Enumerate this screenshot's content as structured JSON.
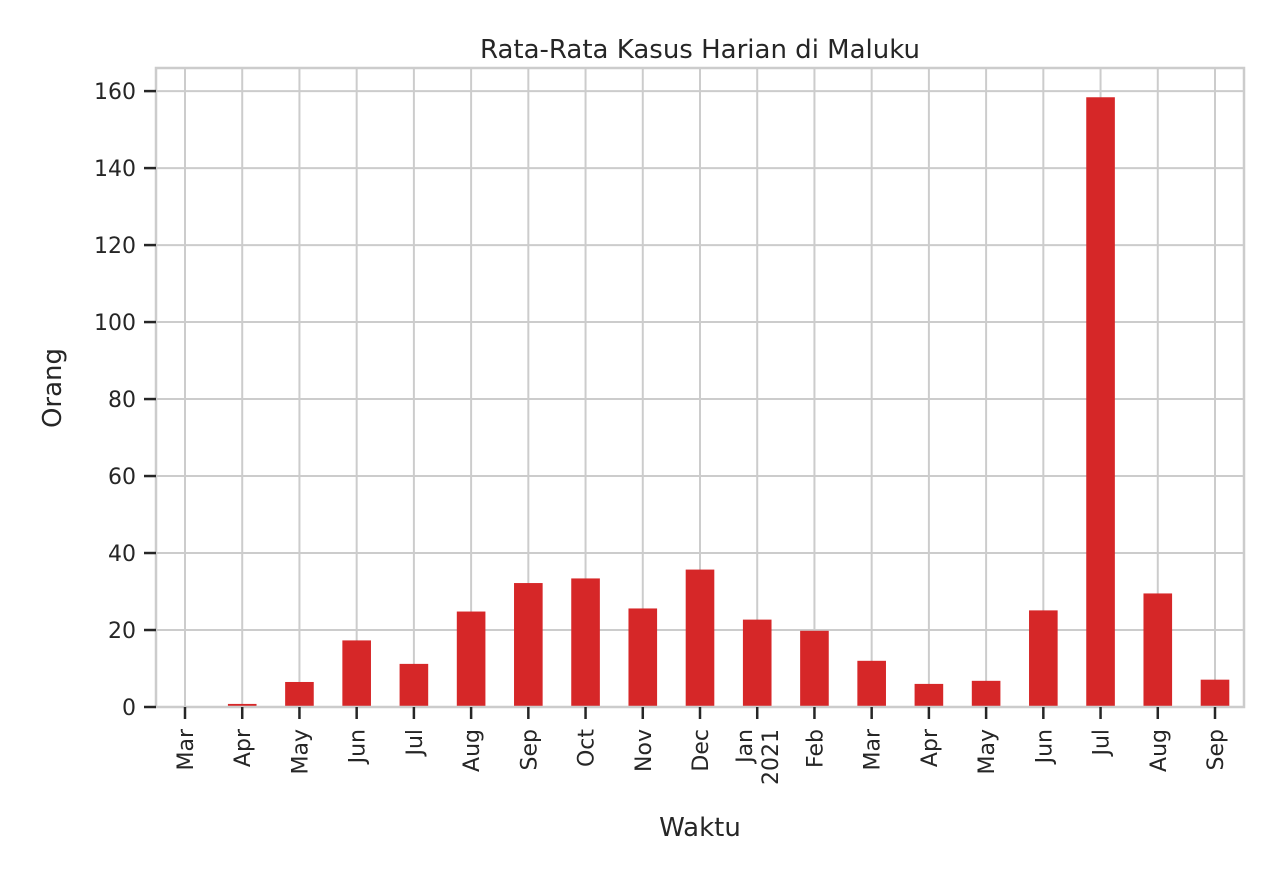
{
  "chart_data": {
    "type": "bar",
    "title": "Rata-Rata Kasus Harian di Maluku",
    "xlabel": "Waktu",
    "ylabel": "Orang",
    "ylim": [
      0,
      166
    ],
    "yticks": [
      0,
      20,
      40,
      60,
      80,
      100,
      120,
      140,
      160
    ],
    "grid": true,
    "color": "#d62728",
    "categories": [
      "Mar",
      "Apr",
      "May",
      "Jun",
      "Jul",
      "Aug",
      "Sep",
      "Oct",
      "Nov",
      "Dec",
      "Jan\n2021",
      "Feb",
      "Mar",
      "Apr",
      "May",
      "Jun",
      "Jul",
      "Aug",
      "Sep"
    ],
    "values": [
      0,
      0.8,
      6.5,
      17.3,
      11.2,
      24.8,
      32.2,
      33.4,
      25.6,
      35.7,
      22.7,
      19.8,
      12.0,
      6.0,
      6.8,
      25.1,
      158.4,
      29.5,
      7.1
    ]
  }
}
